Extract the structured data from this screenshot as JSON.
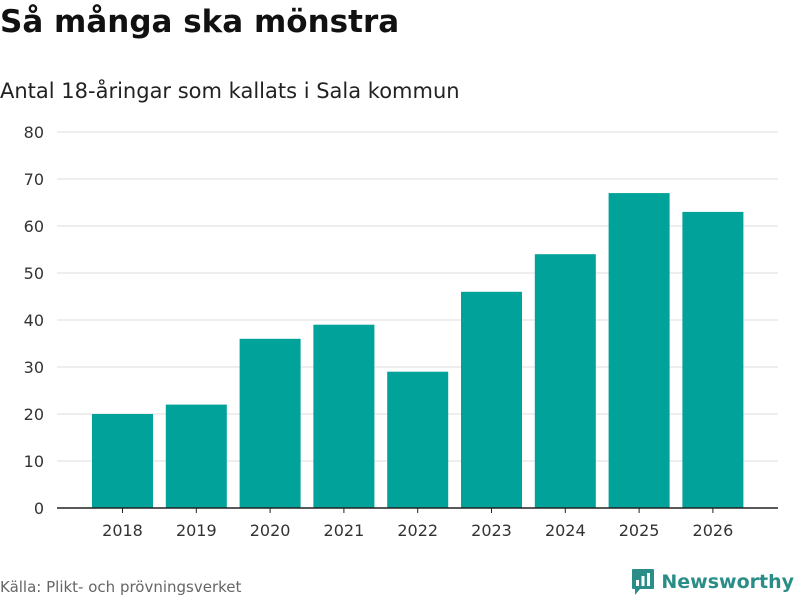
{
  "title": "Så många ska mönstra",
  "subtitle": "Antal 18-åringar som kallats i Sala kommun",
  "source": "Källa: Plikt- och prövningsverket",
  "brand": "Newsworthy",
  "colors": {
    "bar": "#00a299",
    "grid": "#dddddd",
    "axis": "#222222",
    "brand": "#2a8d88"
  },
  "icons": {
    "brand_logo": "bar-chart-speech-bubble-icon"
  },
  "chart_data": {
    "type": "bar",
    "title": "Så många ska mönstra",
    "subtitle": "Antal 18-åringar som kallats i Sala kommun",
    "xlabel": "",
    "ylabel": "",
    "categories": [
      "2018",
      "2019",
      "2020",
      "2021",
      "2022",
      "2023",
      "2024",
      "2025",
      "2026"
    ],
    "values": [
      20,
      22,
      36,
      39,
      29,
      46,
      54,
      67,
      63
    ],
    "ylim": [
      0,
      80
    ],
    "yticks": [
      0,
      10,
      20,
      30,
      40,
      50,
      60,
      70,
      80
    ],
    "grid": true,
    "legend": "none"
  }
}
